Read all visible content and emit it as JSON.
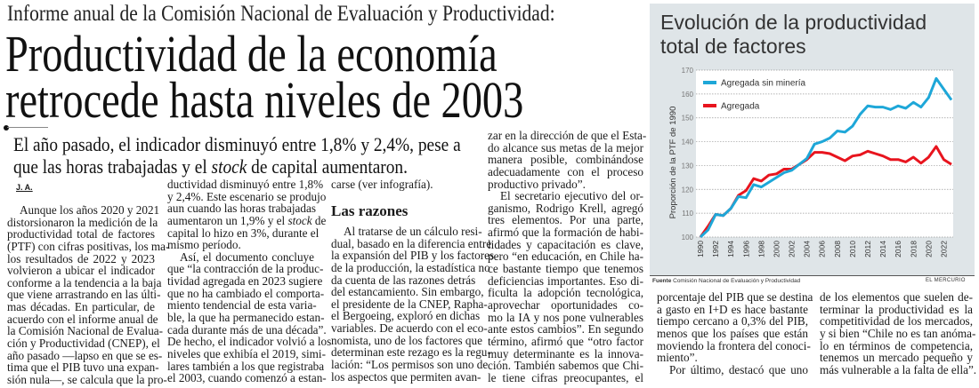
{
  "article": {
    "kicker": "Informe anual de la Comisión Nacional de Evaluación y Productividad:",
    "headline_lines": [
      "Productividad de la economía",
      "retrocede hasta niveles de 2003"
    ],
    "deck_lines": [
      [
        "El año pasado, el indicador disminuyó entre 1,8% y 2,4%, pese a"
      ],
      [
        "que las horas trabajadas y el ",
        "stock",
        " de capital aumentaron."
      ]
    ],
    "byline": "J. A.",
    "subheading": "Las razones",
    "columns": {
      "col1": [
        {
          "t": "Aunque los años 2020 y 2021",
          "ind": true
        },
        {
          "t": "distorsionaron la medición de la"
        },
        {
          "t": "productividad total de factores"
        },
        {
          "t": "(PTF) con cifras positivas, los ma-"
        },
        {
          "t": "los resultados de 2022 y 2023"
        },
        {
          "t": "volvieron a ubicar el indicador"
        },
        {
          "t": "conforme a la tendencia a la baja"
        },
        {
          "t": "que viene arrastrando en las últi-"
        },
        {
          "t": "mas décadas. En particular, de"
        },
        {
          "t": "acuerdo con el informe anual de"
        },
        {
          "t": "la Comisión Nacional de Evalua-"
        },
        {
          "t": "ción y Productividad (CNEP), el"
        },
        {
          "t": "año pasado —lapso en que se es-"
        },
        {
          "t": "tima que el PIB tuvo una expan-"
        },
        {
          "t": "sión nula—, se calcula que la pro-"
        }
      ],
      "col2": [
        {
          "t": "ductividad disminuyó entre 1,8%"
        },
        {
          "t": "y 2,4%. Este escenario se produjo"
        },
        {
          "t": "aun cuando las horas trabajadas"
        },
        {
          "t": [
            "aumentaron un 1,9% y el ",
            "stock",
            " de"
          ]
        },
        {
          "t": "capital lo hizo en 3%, durante el"
        },
        {
          "t": "mismo período.",
          "last": true
        },
        {
          "t": "Así, el documento concluye",
          "ind": true
        },
        {
          "t": "que “la contracción de la produc-"
        },
        {
          "t": "tividad agregada en 2023 sugiere"
        },
        {
          "t": "que no ha cambiado el comporta-"
        },
        {
          "t": "miento tendencial de esta varia-"
        },
        {
          "t": "ble, la que ha permanecido estan-"
        },
        {
          "t": "cada durante más de una década”."
        },
        {
          "t": "De hecho, el indicador volvió a los"
        },
        {
          "t": "niveles que exhibía el 2019, simi-"
        },
        {
          "t": "lares también a los que registraba"
        },
        {
          "t": "el 2003, cuando comenzó a estan-"
        }
      ],
      "col3": [
        {
          "t": "carse (ver infografía).",
          "last": true
        }
      ],
      "col3b": [
        {
          "t": "Al tratarse de un cálculo resi-",
          "ind": true
        },
        {
          "t": "dual, basado en la diferencia entre"
        },
        {
          "t": "la expansión del PIB y los factores"
        },
        {
          "t": "de la producción, la estadística no"
        },
        {
          "t": "da cuenta de las razones detrás"
        },
        {
          "t": "del estancamiento. Sin embargo,"
        },
        {
          "t": "el presidente de la CNEP, Rapha-"
        },
        {
          "t": "el Bergoeing, exploró en dichas"
        },
        {
          "t": "variables. De acuerdo con el eco-"
        },
        {
          "t": "nomista, uno de los factores que"
        },
        {
          "t": "determinan este rezago es la regu-"
        },
        {
          "t": "lación: “Los permisos son uno de"
        },
        {
          "t": "los aspectos que permiten avan-"
        }
      ],
      "col4": [
        {
          "t": "zar en la dirección de que el Esta-"
        },
        {
          "t": "do alcance sus metas de la mejor"
        },
        {
          "t": "manera posible, combinándose"
        },
        {
          "t": "adecuadamente con el proceso"
        },
        {
          "t": "productivo privado”.",
          "last": true
        },
        {
          "t": "El secretario ejecutivo del or-",
          "ind": true
        },
        {
          "t": "ganismo, Rodrigo Krell, agregó"
        },
        {
          "t": "tres elementos. Por una parte,"
        },
        {
          "t": "afirmó que la formación de habi-"
        },
        {
          "t": "lidades y capacitación es clave,"
        },
        {
          "t": "pero “en educación, en Chile ha-"
        },
        {
          "t": "ce bastante tiempo que tenemos"
        },
        {
          "t": "deficiencias importantes. Eso di-"
        },
        {
          "t": "ficulta la adopción tecnológica,"
        },
        {
          "t": "aprovechar oportunidades co-"
        },
        {
          "t": "mo la IA y nos pone vulnerables"
        },
        {
          "t": "ante estos cambios”. En segundo"
        },
        {
          "t": "término, afirmó que “otro factor"
        },
        {
          "t": "muy determinante es la innova-"
        },
        {
          "t": "ción. También sabemos que Chi-"
        },
        {
          "t": "le tiene cifras preocupantes, el"
        }
      ],
      "col5": [
        {
          "t": "porcentaje del PIB que se destina"
        },
        {
          "t": "a gasto en I+D es hace bastante"
        },
        {
          "t": "tiempo cercano a 0,3% del PIB,"
        },
        {
          "t": "menos que los países que están"
        },
        {
          "t": "moviendo la frontera del conoci-"
        },
        {
          "t": "miento”.",
          "last": true
        },
        {
          "t": "Por último, destacó que uno",
          "ind": true
        }
      ],
      "col6": [
        {
          "t": "de los elementos que suelen de-"
        },
        {
          "t": "terminar la productividad es la"
        },
        {
          "t": "competitividad de los mercados,"
        },
        {
          "t": "y si bien “Chile no es tan anóma-"
        },
        {
          "t": "lo en términos de competencia,"
        },
        {
          "t": "tenemos un mercado pequeño y"
        },
        {
          "t": "más vulnerable a la falta de ella”.",
          "last": true
        }
      ]
    }
  },
  "infographic": {
    "title_lines": [
      "Evolución de la productividad",
      "total de factores"
    ],
    "source_label": "Fuente",
    "source_text": "Comisión Nacional de Evaluación y Productividad",
    "brand": "EL MERCURIO",
    "background_color": "#dfe5e8"
  },
  "chart_data": {
    "type": "line",
    "title": "Evolución de la productividad total de factores",
    "xlabel": "",
    "ylabel": "Proporción de la PTF de 1990",
    "ylim": [
      100,
      170
    ],
    "yticks": [
      100,
      110,
      120,
      130,
      140,
      150,
      160,
      170
    ],
    "xticks": [
      1990,
      1992,
      1994,
      1996,
      1998,
      2000,
      2002,
      2004,
      2006,
      2008,
      2010,
      2012,
      2014,
      2016,
      2018,
      2020,
      2022
    ],
    "grid": "horizontal dotted",
    "legend": "top-left",
    "x": [
      1990,
      1991,
      1992,
      1993,
      1994,
      1995,
      1996,
      1997,
      1998,
      1999,
      2000,
      2001,
      2002,
      2003,
      2004,
      2005,
      2006,
      2007,
      2008,
      2009,
      2010,
      2011,
      2012,
      2013,
      2014,
      2015,
      2016,
      2017,
      2018,
      2019,
      2020,
      2021,
      2022,
      2023
    ],
    "series": [
      {
        "name": "Agregada sin minería",
        "color": "#1ea7d8",
        "values": [
          100,
          103,
          109.5,
          109,
          112,
          117,
          116.5,
          122,
          121,
          123,
          125,
          127,
          128,
          130.5,
          133,
          139,
          140,
          141.5,
          144.5,
          144,
          146.5,
          151.5,
          155,
          154.5,
          154.5,
          153.5,
          155,
          154,
          156.5,
          154.5,
          158.5,
          166.5,
          162,
          157.5
        ]
      },
      {
        "name": "Agregada",
        "color": "#e8141e",
        "values": [
          100,
          104.5,
          109.5,
          109,
          112,
          117.5,
          119.5,
          124.5,
          123.5,
          126,
          126.5,
          128.5,
          128.5,
          130.5,
          132.5,
          135.5,
          135.5,
          135,
          133.5,
          132,
          134,
          134.5,
          136,
          135,
          134,
          132.5,
          132.5,
          131.5,
          133.5,
          131,
          133.5,
          138,
          132.5,
          130.5
        ]
      }
    ]
  }
}
